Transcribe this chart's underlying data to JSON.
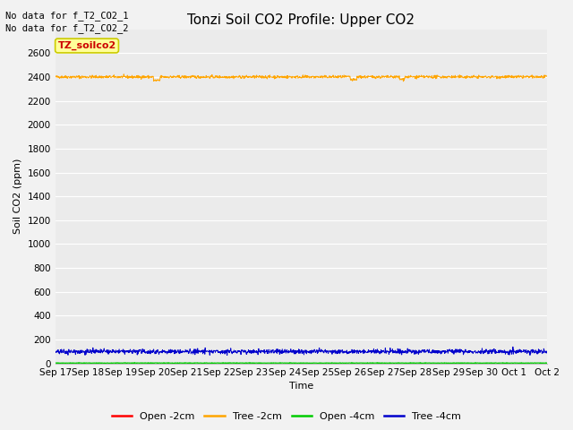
{
  "title": "Tonzi Soil CO2 Profile: Upper CO2",
  "xlabel": "Time",
  "ylabel": "Soil CO2 (ppm)",
  "no_data_text": [
    "No data for f_T2_CO2_1",
    "No data for f_T2_CO2_2"
  ],
  "annotation_label": "TZ_soilco2",
  "annotation_label_color": "#cc0000",
  "annotation_bg_color": "#ffff99",
  "annotation_border_color": "#cccc00",
  "ylim": [
    0,
    2800
  ],
  "yticks": [
    0,
    200,
    400,
    600,
    800,
    1000,
    1200,
    1400,
    1600,
    1800,
    2000,
    2200,
    2400,
    2600
  ],
  "x_labels": [
    "Sep 17",
    "Sep 18",
    "Sep 19",
    "Sep 20",
    "Sep 21",
    "Sep 22",
    "Sep 23",
    "Sep 24",
    "Sep 25",
    "Sep 26",
    "Sep 27",
    "Sep 28",
    "Sep 29",
    "Sep 30",
    "Oct 1",
    "Oct 2"
  ],
  "tree_2cm_value": 2400,
  "tree_2cm_noise": 6,
  "tree_4cm_value": 100,
  "tree_4cm_noise": 10,
  "open_4cm_value": 4,
  "open_4cm_noise": 1,
  "n_points": 1500,
  "colors": {
    "open_2cm": "#ff0000",
    "tree_2cm": "#ffa500",
    "open_4cm": "#00cc00",
    "tree_4cm": "#0000cc"
  },
  "legend_labels": [
    "Open -2cm",
    "Tree -2cm",
    "Open -4cm",
    "Tree -4cm"
  ],
  "plot_bg_color": "#ebebeb",
  "fig_bg_color": "#f2f2f2",
  "grid_color": "#ffffff",
  "title_fontsize": 11,
  "axis_label_fontsize": 8,
  "tick_fontsize": 7.5,
  "nodata_fontsize": 7.5,
  "legend_fontsize": 8,
  "annot_fontsize": 8
}
